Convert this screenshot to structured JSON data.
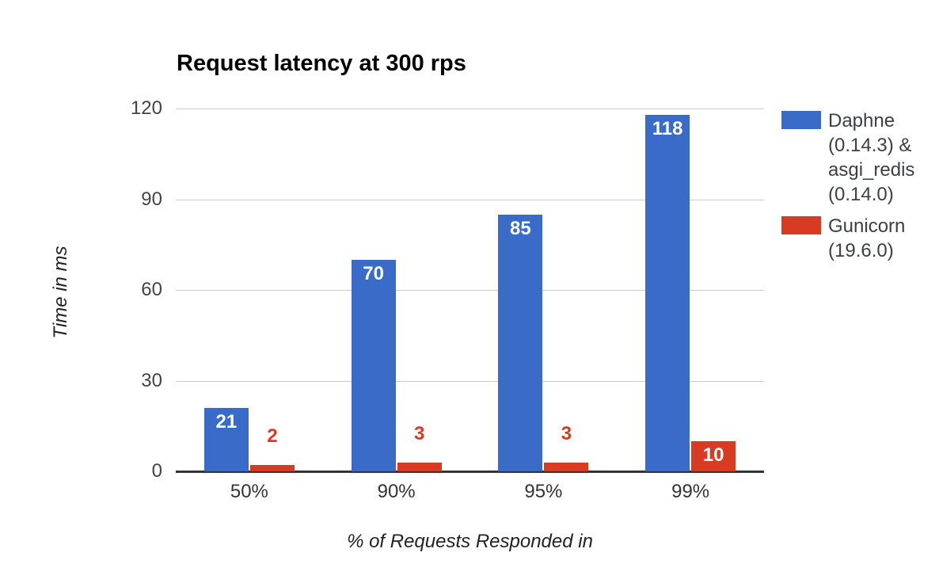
{
  "chart_data": {
    "type": "bar",
    "title": "Request latency at 300 rps",
    "xlabel": "% of Requests Responded in",
    "ylabel": "Time in ms",
    "categories": [
      "50%",
      "90%",
      "95%",
      "99%"
    ],
    "series": [
      {
        "name": "Daphne (0.14.3) & asgi_redis (0.14.0)",
        "label_lines": [
          "Daphne",
          "(0.14.3) &",
          "asgi_redis",
          "(0.14.0)"
        ],
        "color": "#3B6BC8",
        "values": [
          21,
          70,
          85,
          118
        ]
      },
      {
        "name": "Gunicorn (19.6.0)",
        "label_lines": [
          "Gunicorn",
          "(19.6.0)"
        ],
        "color": "#D93B22",
        "values": [
          2,
          3,
          3,
          10
        ]
      }
    ],
    "ylim": [
      0,
      120
    ],
    "yticks": [
      0,
      30,
      60,
      90,
      120
    ],
    "grid": "horizontal",
    "legend_position": "right",
    "background_color": "#FFFFFF",
    "gridline_color": "#CCCCCC",
    "baseline_color": "#333333",
    "inside_label_color": "#FFFFFF"
  }
}
